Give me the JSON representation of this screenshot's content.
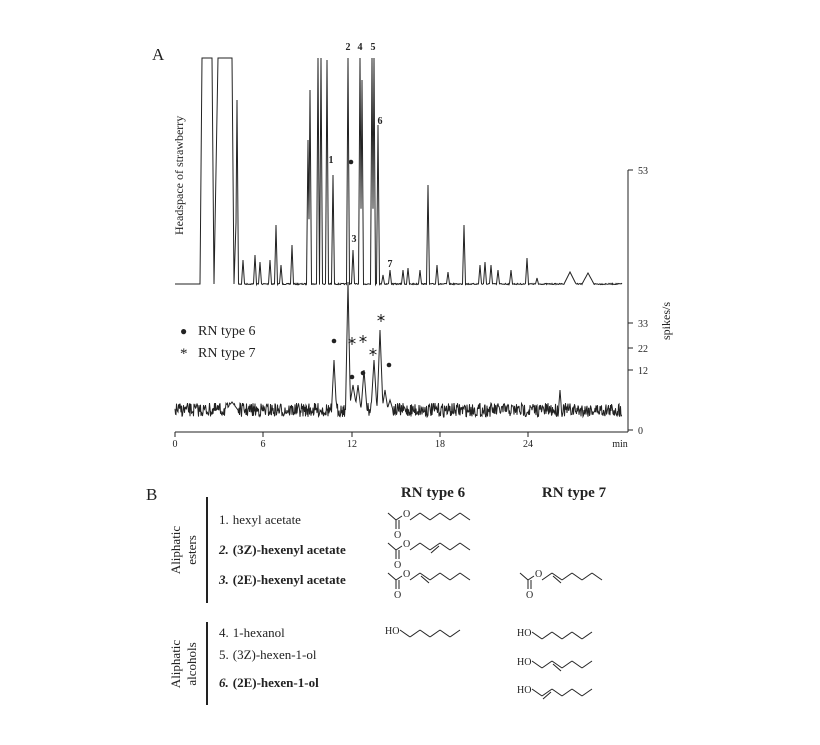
{
  "panel_a": {
    "label": "A",
    "y_axis_label": "Headspace of strawberry",
    "right_axis_label": "spikes/s",
    "x_unit": "min",
    "x_ticks": [
      "0",
      "6",
      "12",
      "18",
      "24"
    ],
    "right_ticks": [
      "53",
      "33",
      "22",
      "12",
      "0"
    ],
    "peak_labels": [
      "1",
      "2",
      "3",
      "4",
      "5",
      "6",
      "7"
    ],
    "legend": [
      {
        "symbol": "●",
        "label": "RN type 6"
      },
      {
        "symbol": "*",
        "label": "RN type 7"
      }
    ]
  },
  "panel_b": {
    "label": "B",
    "columns": [
      "RN type 6",
      "RN type 7"
    ],
    "groups": [
      {
        "label_lines": [
          "Aliphatic",
          "esters"
        ],
        "items": [
          {
            "number": "1.",
            "name": "hexyl acetate",
            "bold": false
          },
          {
            "number": "2.",
            "name": "(3Z)-hexenyl acetate",
            "bold": true
          },
          {
            "number": "3.",
            "name": "(2E)-hexenyl acetate",
            "bold": true
          }
        ]
      },
      {
        "label_lines": [
          "Aliphatic",
          "alcohols"
        ],
        "items": [
          {
            "number": "4.",
            "name": "1-hexanol",
            "bold": false
          },
          {
            "number": "5.",
            "name": "(3Z)-hexen-1-ol",
            "bold": false
          },
          {
            "number": "6.",
            "name": "(2E)-hexen-1-ol",
            "bold": true
          }
        ]
      }
    ],
    "atoms": {
      "ester_oxygen": "O",
      "hydroxyl": "HO"
    }
  }
}
